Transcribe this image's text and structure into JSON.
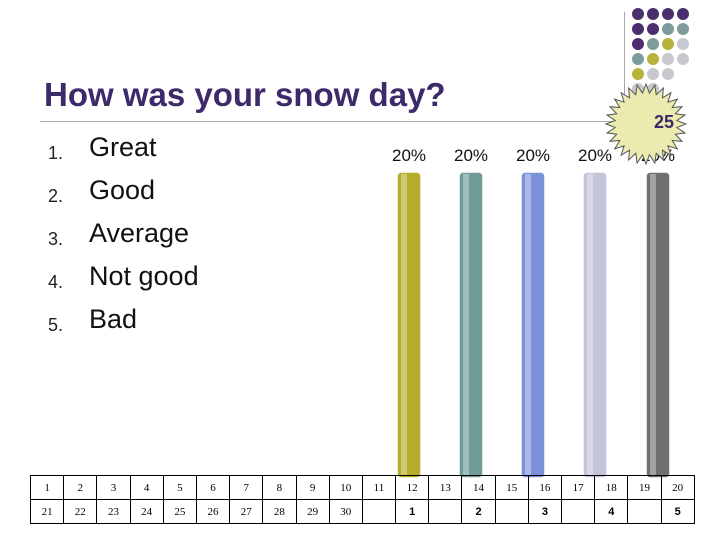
{
  "slide": {
    "title": "How was your snow day?",
    "options": [
      {
        "number": "1.",
        "label": "Great"
      },
      {
        "number": "2.",
        "label": "Good"
      },
      {
        "number": "3.",
        "label": "Average"
      },
      {
        "number": "4.",
        "label": "Not good"
      },
      {
        "number": "5.",
        "label": "Bad"
      }
    ],
    "countdown": "25",
    "decor_colors": [
      "#4b2e6e",
      "#7f9c9c",
      "#b8b33a",
      "#c8c8d0"
    ]
  },
  "chart_data": {
    "type": "bar",
    "categories": [
      "1",
      "2",
      "3",
      "4",
      "5"
    ],
    "values": [
      20,
      20,
      20,
      20,
      20
    ],
    "data_labels": [
      "20%",
      "20%",
      "20%",
      "20%",
      "20%"
    ],
    "unit": "%",
    "ylim": [
      0,
      20
    ],
    "grid": false,
    "colors": [
      "#b5ad2c",
      "#6f9c96",
      "#7b92d8",
      "#c4c4d8",
      "#707070"
    ]
  },
  "keypad": {
    "row1": [
      "1",
      "2",
      "3",
      "4",
      "5",
      "6",
      "7",
      "8",
      "9",
      "10",
      "11",
      "12",
      "13",
      "14",
      "15",
      "16",
      "17",
      "18",
      "19",
      "20"
    ],
    "row2": [
      "21",
      "22",
      "23",
      "24",
      "25",
      "26",
      "27",
      "28",
      "29",
      "30",
      "",
      "1",
      "",
      "2",
      "",
      "3",
      "",
      "4",
      "",
      "5"
    ]
  }
}
